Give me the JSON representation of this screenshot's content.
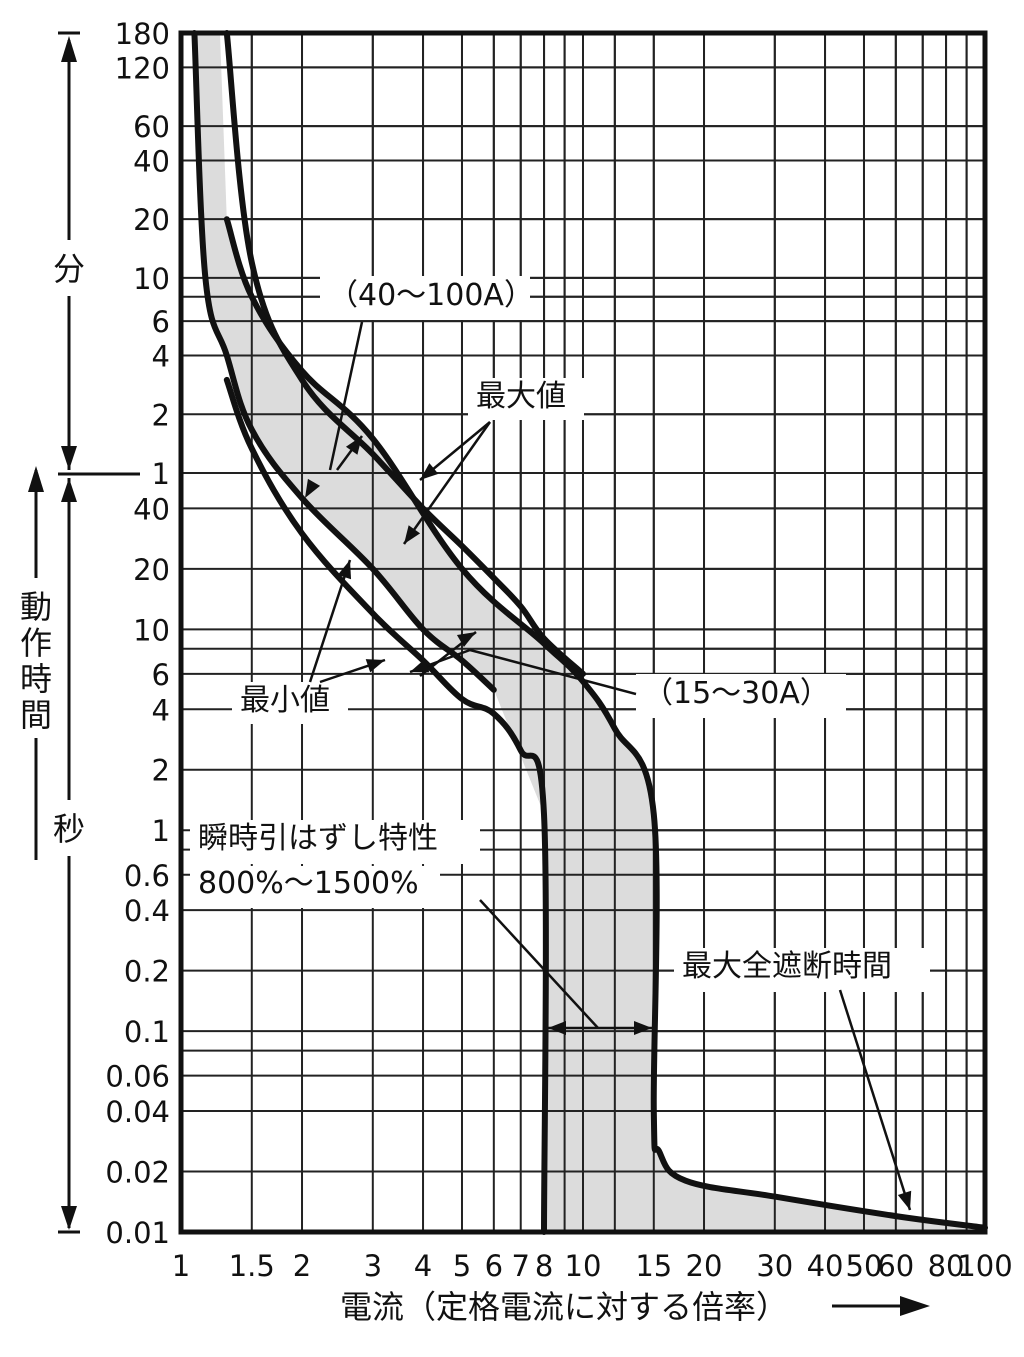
{
  "chart_data": {
    "type": "line",
    "xlabel": "電流（定格電流に対する倍率）",
    "x_scale": "log",
    "xlim": [
      1,
      100
    ],
    "x_ticks": [
      1,
      1.5,
      2,
      3,
      4,
      5,
      6,
      7,
      8,
      10,
      15,
      20,
      30,
      40,
      50,
      60,
      80,
      100
    ],
    "x_tick_labels": [
      "1",
      "1.5",
      "2",
      "3",
      "4",
      "5",
      "6",
      "7",
      "8",
      "10",
      "15",
      "20",
      "30",
      "40",
      "50",
      "60",
      "80",
      "100"
    ],
    "y_scale": "log",
    "y_axis_sections": [
      {
        "unit": "分",
        "range": [
          1,
          180
        ],
        "tick_labels": [
          "180",
          "120",
          "60",
          "40",
          "20",
          "10",
          "6",
          "4",
          "2",
          "1"
        ]
      },
      {
        "unit": "秒",
        "range": [
          0.01,
          60
        ],
        "tick_labels": [
          "40",
          "20",
          "10",
          "6",
          "4",
          "2",
          "1",
          "0.6",
          "0.4",
          "0.2",
          "0.1",
          "0.06",
          "0.04",
          "0.02",
          "0.01"
        ]
      }
    ],
    "ylabel": "動作時間",
    "grid": true,
    "series": [
      {
        "role": "40〜100A 最大値",
        "x": [
          1.3,
          1.5,
          2,
          3,
          4,
          5,
          6,
          7,
          8,
          10
        ],
        "y_seconds": [
          10800,
          720,
          180,
          75,
          40,
          26,
          18,
          13,
          9,
          6
        ]
      },
      {
        "role": "40〜100A 最小値",
        "x": [
          1.08,
          1.15,
          1.3,
          1.5,
          2,
          3,
          4,
          5,
          6
        ],
        "y_seconds": [
          10800,
          600,
          240,
          100,
          45,
          20,
          10,
          7,
          5
        ]
      },
      {
        "role": "15〜30A 最大値",
        "x": [
          1.3,
          1.5,
          2,
          3,
          5,
          8,
          10,
          12,
          15,
          15,
          15.5,
          18,
          30,
          60,
          100
        ],
        "y_seconds": [
          1200,
          480,
          200,
          90,
          20,
          8.5,
          5.5,
          3.2,
          1.2,
          0.04,
          0.025,
          0.018,
          0.015,
          0.012,
          0.0105
        ]
      },
      {
        "role": "15〜30A 最小値",
        "x": [
          1.3,
          1.5,
          2,
          3,
          4,
          5,
          6,
          7,
          8,
          8
        ],
        "y_seconds": [
          180,
          80,
          30,
          12,
          7,
          4.5,
          3.8,
          2.5,
          1.2,
          0.01
        ]
      }
    ],
    "annotations": [
      {
        "text": "（40〜100A）",
        "points_to": "40〜100A curves"
      },
      {
        "text": "（15〜30A）",
        "points_to": "15〜30A curves"
      },
      {
        "text": "最大値",
        "points_to": "upper curves"
      },
      {
        "text": "最小値",
        "points_to": "lower curves"
      },
      {
        "text": "瞬時引はずし特性",
        "line2": "800%〜1500%",
        "points_to": "instantaneous trip band 8〜15"
      },
      {
        "text": "最大全遮断時間",
        "points_to": "lower tail curve"
      }
    ],
    "colors": {
      "band_fill": "#dcdcdc",
      "line": "#111111"
    }
  }
}
